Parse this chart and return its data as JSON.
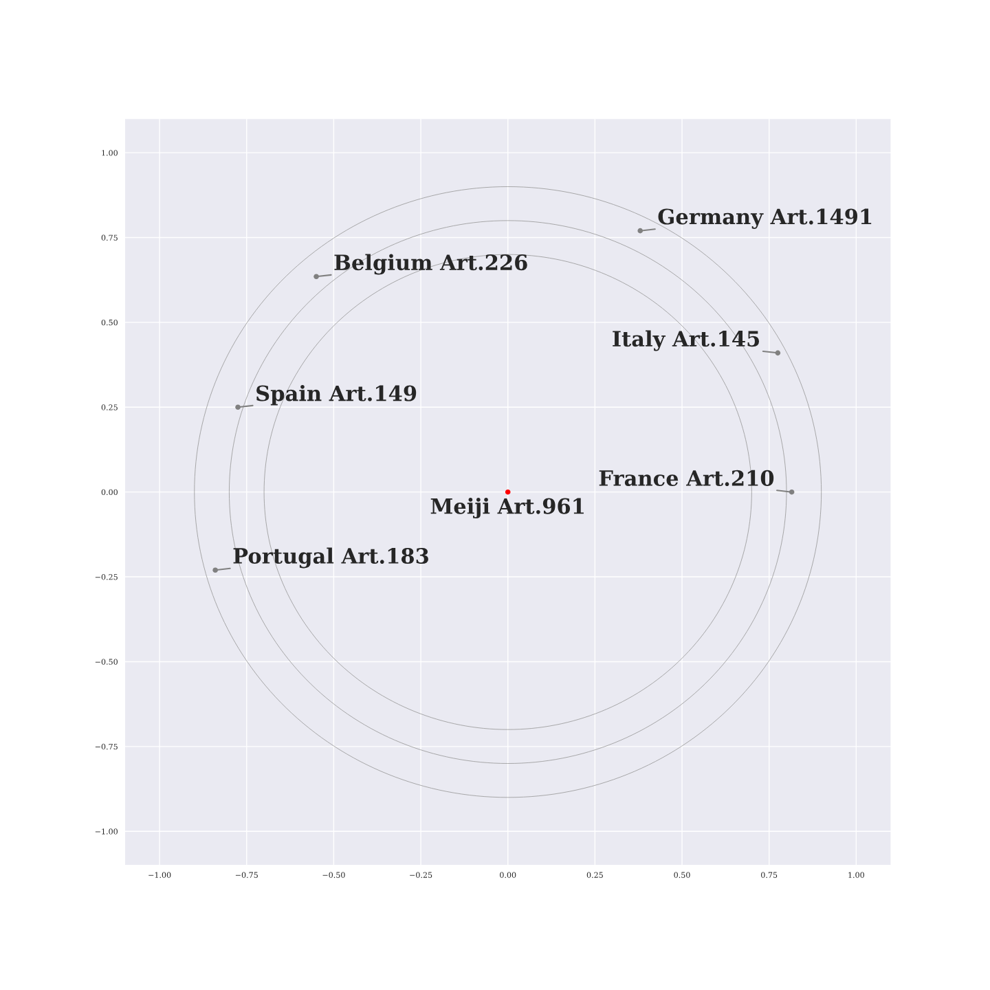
{
  "chart_data": {
    "type": "scatter",
    "marker": "circle",
    "xlim": [
      -1.1,
      1.1
    ],
    "ylim": [
      -1.1,
      1.1
    ],
    "xticks": [
      {
        "value": -1.0,
        "label": "−1.00"
      },
      {
        "value": -0.75,
        "label": "−0.75"
      },
      {
        "value": -0.5,
        "label": "−0.50"
      },
      {
        "value": -0.25,
        "label": "−0.25"
      },
      {
        "value": 0.0,
        "label": "0.00"
      },
      {
        "value": 0.25,
        "label": "0.25"
      },
      {
        "value": 0.5,
        "label": "0.50"
      },
      {
        "value": 0.75,
        "label": "0.75"
      },
      {
        "value": 1.0,
        "label": "1.00"
      }
    ],
    "yticks": [
      {
        "value": -1.0,
        "label": "−1.00"
      },
      {
        "value": -0.75,
        "label": "−0.75"
      },
      {
        "value": -0.5,
        "label": "−0.50"
      },
      {
        "value": -0.25,
        "label": "−0.25"
      },
      {
        "value": 0.0,
        "label": "0.00"
      },
      {
        "value": 0.25,
        "label": "0.25"
      },
      {
        "value": 0.5,
        "label": "0.50"
      },
      {
        "value": 0.75,
        "label": "0.75"
      },
      {
        "value": 1.0,
        "label": "1.00"
      }
    ],
    "grid": true,
    "series": [
      {
        "x": [
          0,
          0.38,
          -0.55,
          0.775,
          -0.775,
          0.815,
          -0.84
        ],
        "values": [
          0,
          0.77,
          0.635,
          0.41,
          0.25,
          0.0,
          -0.23
        ],
        "colors": [
          "#ff0000",
          "#808080",
          "#808080",
          "#808080",
          "#808080",
          "#808080",
          "#808080"
        ]
      }
    ],
    "annotations": [
      {
        "text": "Meiji Art.961",
        "x": 0,
        "y": 0
      },
      {
        "text": "Germany Art.1491",
        "x": 0.38,
        "y": 0.77
      },
      {
        "text": "Belgium Art.226",
        "x": -0.55,
        "y": 0.635
      },
      {
        "text": "Italy Art.145",
        "x": 0.775,
        "y": 0.41
      },
      {
        "text": "Spain Art.149",
        "x": -0.775,
        "y": 0.25
      },
      {
        "text": "France Art.210",
        "x": 0.815,
        "y": 0.0
      },
      {
        "text": "Portugal Art.183",
        "x": -0.84,
        "y": -0.23
      }
    ]
  }
}
